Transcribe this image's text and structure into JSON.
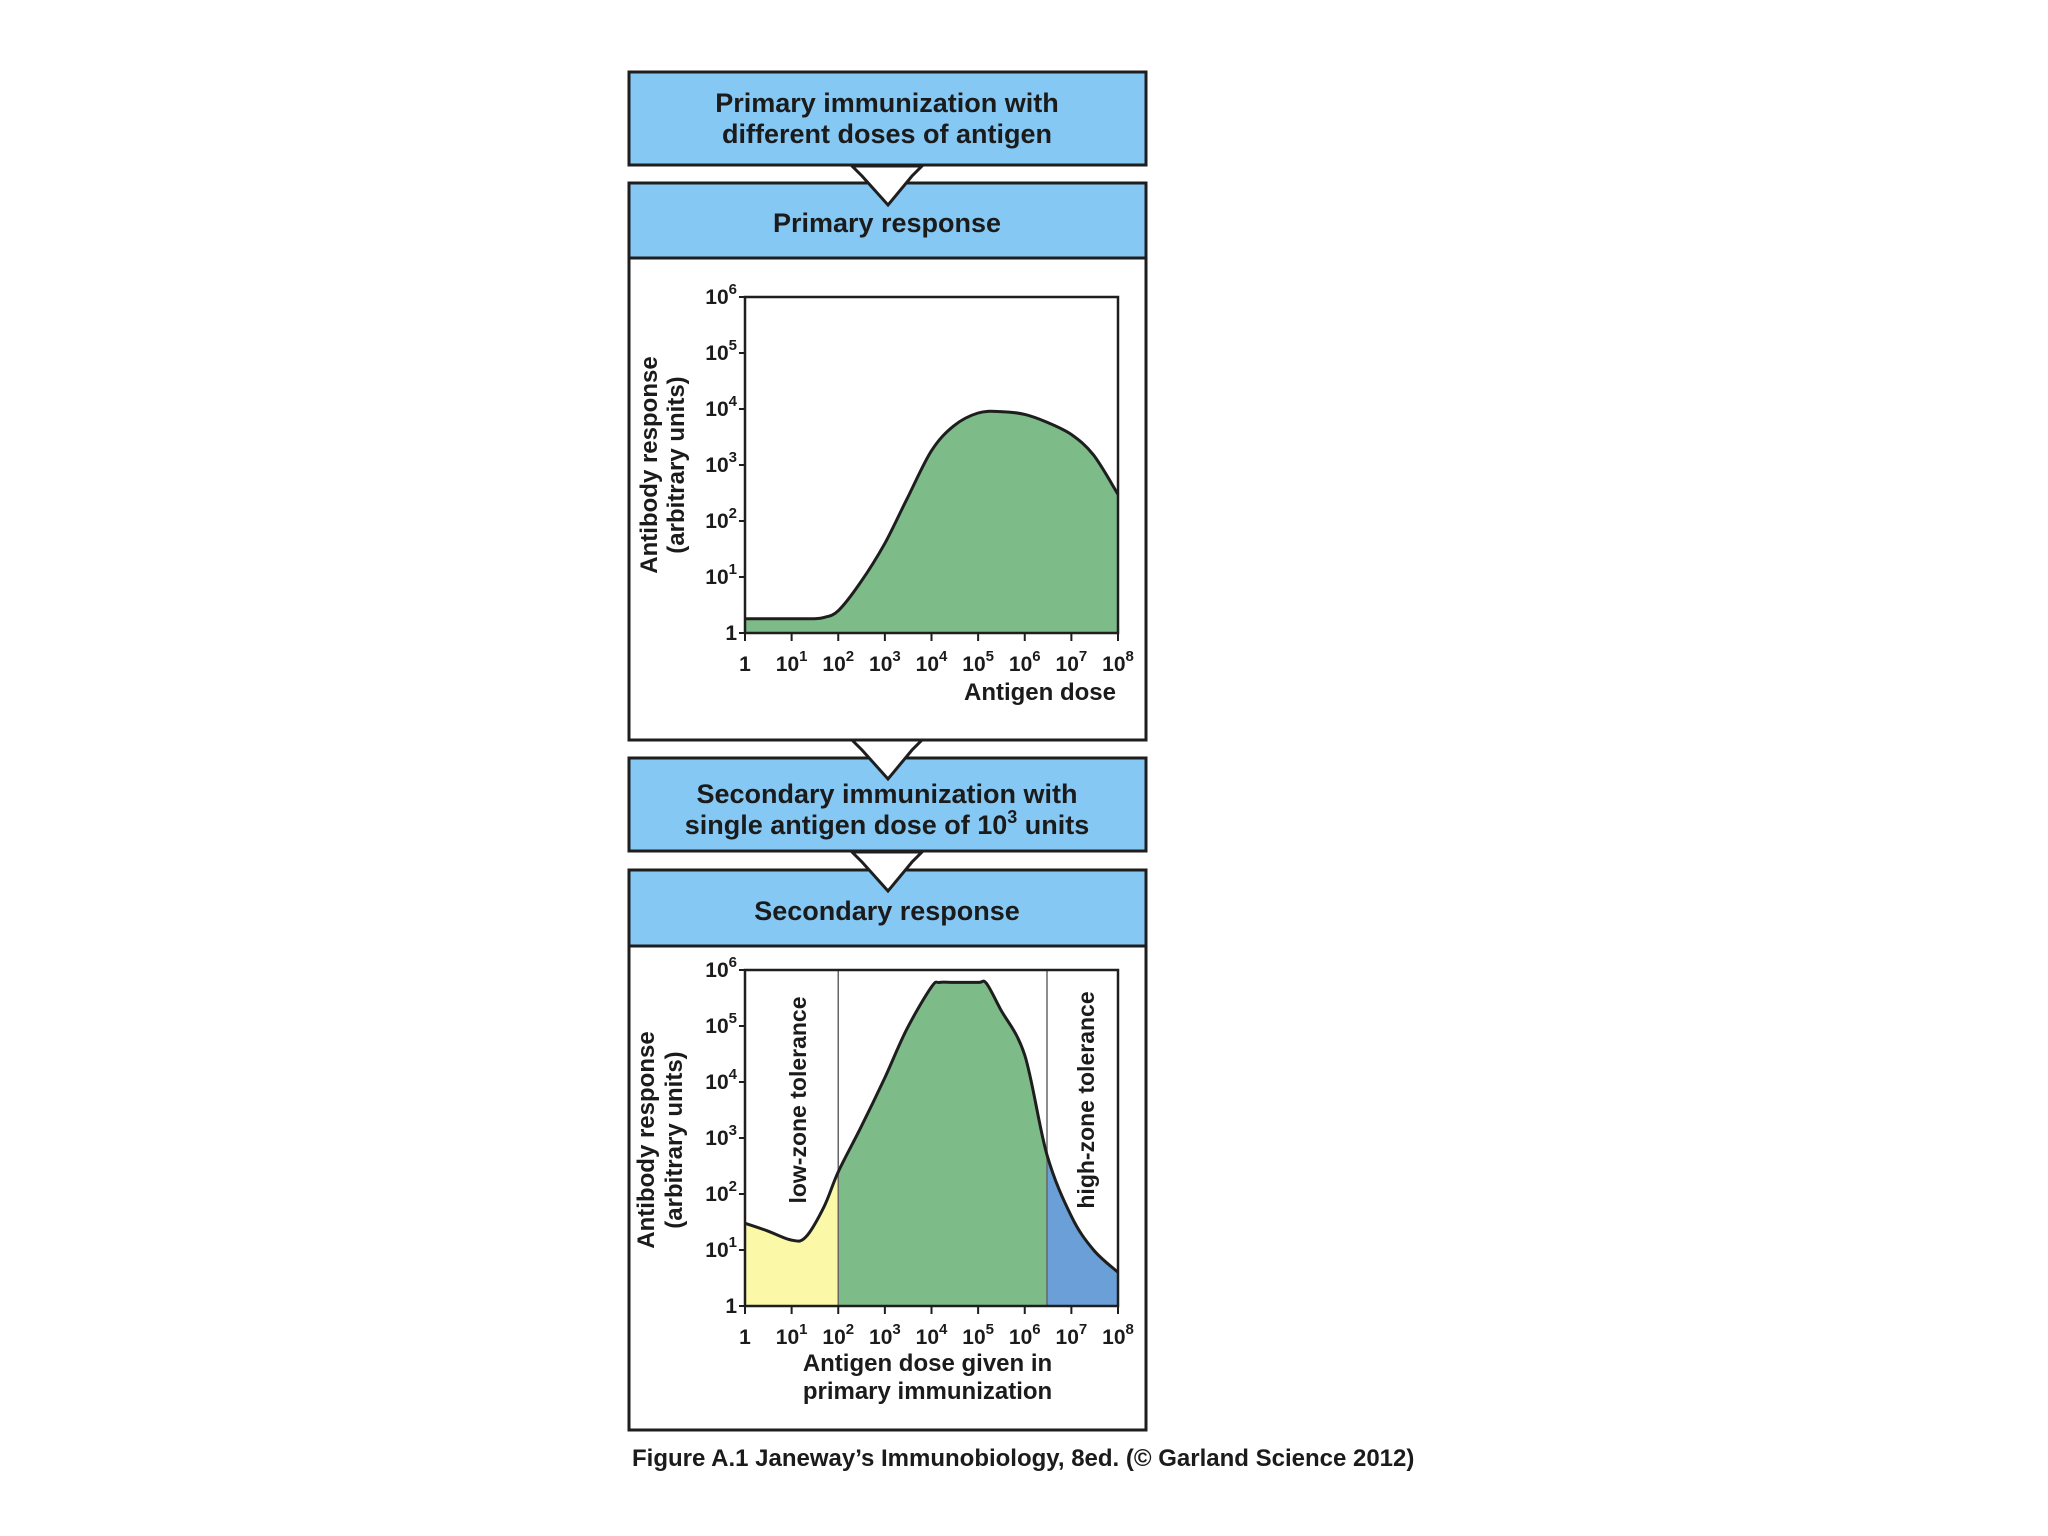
{
  "banners": {
    "primary_immunization": [
      "Primary immunization with",
      "different doses of antigen"
    ],
    "primary_response": "Primary response",
    "secondary_immunization_line1": "Secondary immunization with",
    "secondary_immunization_line2_prefix": "single antigen dose of 10",
    "secondary_immunization_line2_sup": "3",
    "secondary_immunization_line2_suffix": " units",
    "secondary_response": "Secondary response"
  },
  "caption": "Figure A.1  Janeway’s Immunobiology, 8ed. (© Garland Science 2012)",
  "colors": {
    "banner": "#86c8f4",
    "response_green": "#7dbb88",
    "low_zone_yellow": "#fbf9a8",
    "high_zone_blue": "#6a9fd8",
    "outline": "#1e1e1e"
  },
  "chart_data": [
    {
      "type": "area",
      "scale": "log-log",
      "x_tick_labels": [
        {
          "base": "1",
          "exp": ""
        },
        {
          "base": "10",
          "exp": "1"
        },
        {
          "base": "10",
          "exp": "2"
        },
        {
          "base": "10",
          "exp": "3"
        },
        {
          "base": "10",
          "exp": "4"
        },
        {
          "base": "10",
          "exp": "5"
        },
        {
          "base": "10",
          "exp": "6"
        },
        {
          "base": "10",
          "exp": "7"
        },
        {
          "base": "10",
          "exp": "8"
        }
      ],
      "y_tick_labels": [
        {
          "base": "1",
          "exp": ""
        },
        {
          "base": "10",
          "exp": "1"
        },
        {
          "base": "10",
          "exp": "2"
        },
        {
          "base": "10",
          "exp": "3"
        },
        {
          "base": "10",
          "exp": "4"
        },
        {
          "base": "10",
          "exp": "5"
        },
        {
          "base": "10",
          "exp": "6"
        }
      ],
      "ylabel": [
        "Antibody response",
        "(arbitrary units)"
      ],
      "xlabel": [
        "Antigen dose"
      ],
      "xlim": [
        1,
        100000000
      ],
      "ylim": [
        1,
        1000000
      ],
      "series": [
        {
          "color": "#7dbb88",
          "x": [
            1,
            3,
            10,
            30,
            50,
            100,
            300,
            1000,
            3000,
            10000,
            30000,
            100000,
            300000,
            1000000,
            3000000,
            10000000,
            30000000,
            100000000
          ],
          "y": [
            1.8,
            1.8,
            1.8,
            1.8,
            1.9,
            2.5,
            8,
            40,
            250,
            1800,
            5000,
            8500,
            9000,
            8000,
            5800,
            3500,
            1500,
            300
          ]
        }
      ]
    },
    {
      "type": "area",
      "scale": "log-log",
      "x_tick_labels": [
        {
          "base": "1",
          "exp": ""
        },
        {
          "base": "10",
          "exp": "1"
        },
        {
          "base": "10",
          "exp": "2"
        },
        {
          "base": "10",
          "exp": "3"
        },
        {
          "base": "10",
          "exp": "4"
        },
        {
          "base": "10",
          "exp": "5"
        },
        {
          "base": "10",
          "exp": "6"
        },
        {
          "base": "10",
          "exp": "7"
        },
        {
          "base": "10",
          "exp": "8"
        }
      ],
      "y_tick_labels": [
        {
          "base": "1",
          "exp": ""
        },
        {
          "base": "10",
          "exp": "1"
        },
        {
          "base": "10",
          "exp": "2"
        },
        {
          "base": "10",
          "exp": "3"
        },
        {
          "base": "10",
          "exp": "4"
        },
        {
          "base": "10",
          "exp": "5"
        },
        {
          "base": "10",
          "exp": "6"
        }
      ],
      "ylabel": [
        "Antibody response",
        "(arbitrary units)"
      ],
      "xlabel": [
        "Antigen dose given in",
        "primary immunization"
      ],
      "xlim": [
        1,
        100000000
      ],
      "ylim": [
        1,
        1000000
      ],
      "zones": [
        {
          "label": "low-zone tolerance",
          "from": 1,
          "to": 100,
          "color": "#fbf9a8"
        },
        {
          "label": "",
          "from": 100,
          "to": 3000000,
          "color": "#7dbb88"
        },
        {
          "label": "high-zone tolerance",
          "from": 3000000,
          "to": 100000000,
          "color": "#6a9fd8"
        }
      ],
      "series": [
        {
          "x": [
            1,
            3,
            10,
            20,
            50,
            100,
            300,
            1000,
            3000,
            10000,
            15000,
            30000,
            100000,
            150000,
            300000,
            1000000,
            3000000,
            10000000,
            30000000,
            100000000
          ],
          "y": [
            30,
            22,
            15,
            17,
            60,
            250,
            1500,
            12000,
            90000,
            500000,
            600000,
            600000,
            600000,
            580000,
            200000,
            30000,
            500,
            40,
            10,
            4
          ]
        }
      ]
    }
  ]
}
